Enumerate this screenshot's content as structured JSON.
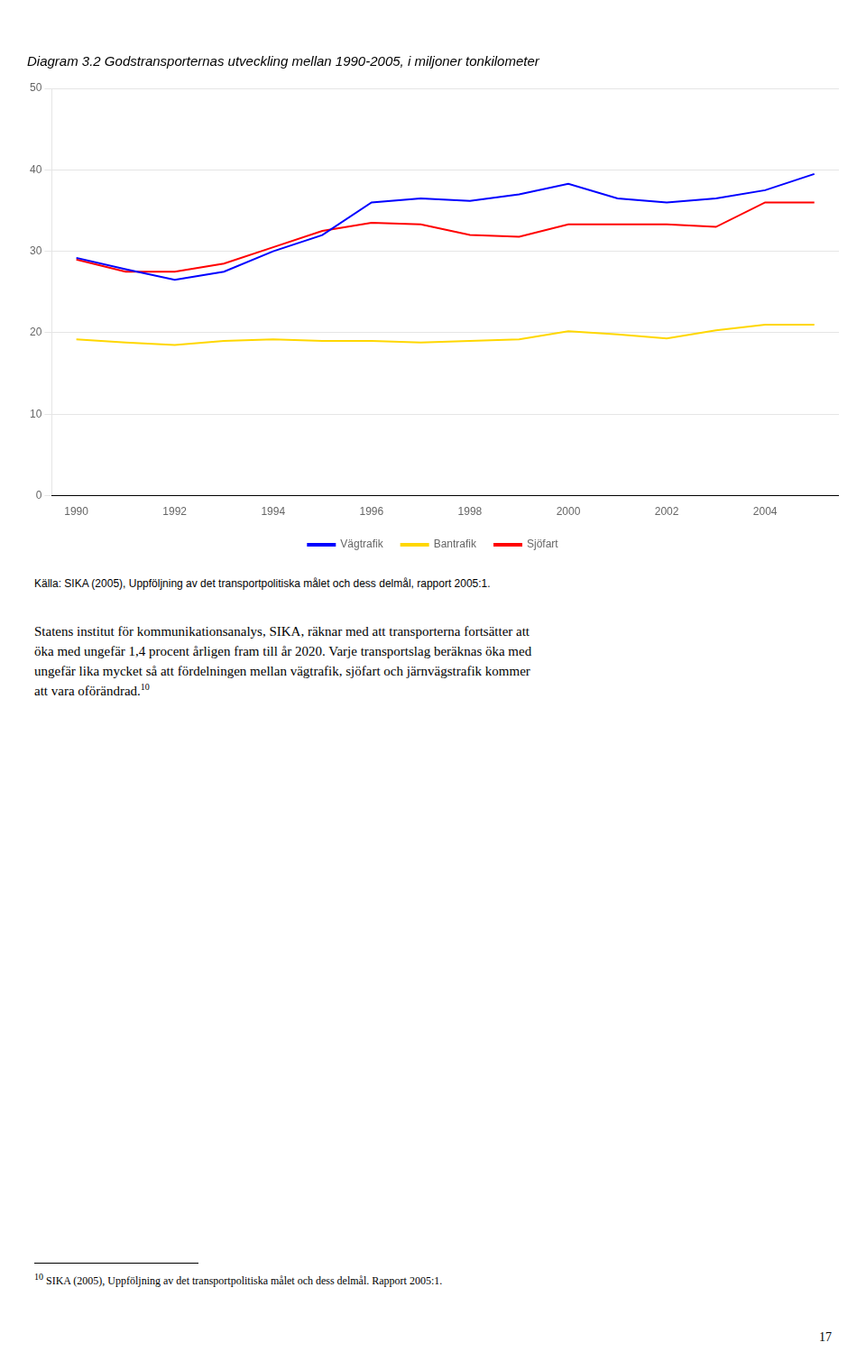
{
  "chart_data": {
    "type": "line",
    "title": "Diagram 3.2 Godstransporternas utveckling mellan 1990-2005, i miljoner tonkilometer",
    "x": [
      1990,
      1991,
      1992,
      1993,
      1994,
      1995,
      1996,
      1997,
      1998,
      1999,
      2000,
      2001,
      2002,
      2003,
      2004,
      2005
    ],
    "series": [
      {
        "name": "Vägtrafik",
        "color": "#0000FF",
        "values": [
          29.2,
          27.8,
          26.5,
          27.5,
          30.0,
          32.0,
          36.0,
          36.5,
          36.2,
          37.0,
          38.3,
          36.5,
          36.0,
          36.5,
          37.5,
          39.5
        ]
      },
      {
        "name": "Bantrafik",
        "color": "#FFD700",
        "values": [
          19.2,
          18.8,
          18.5,
          19.0,
          19.2,
          19.0,
          19.0,
          18.8,
          19.0,
          19.2,
          20.2,
          19.8,
          19.3,
          20.3,
          21.0,
          21.0
        ]
      },
      {
        "name": "Sjöfart",
        "color": "#FF0000",
        "values": [
          29.0,
          27.5,
          27.5,
          28.5,
          30.5,
          32.5,
          33.5,
          33.3,
          32.0,
          31.8,
          33.3,
          33.3,
          33.3,
          33.0,
          36.0,
          36.0
        ]
      }
    ],
    "xlim": [
      1989.5,
      2005.5
    ],
    "xticks": [
      1990,
      1992,
      1994,
      1996,
      1998,
      2000,
      2002,
      2004
    ],
    "ylim": [
      0,
      50
    ],
    "yticks": [
      0,
      10,
      20,
      30,
      40,
      50
    ],
    "grid": "y",
    "legend": "bottom",
    "source": "Källa: SIKA (2005), Uppföljning av det transportpolitiska målet och dess delmål, rapport 2005:1.",
    "body": [
      "Statens institut för kommunikationsanalys, SIKA, räknar med att transporterna fortsätter att",
      "öka med ungefär 1,4 procent årligen fram till år 2020. Varje transportslag beräknas öka med",
      "ungefär lika mycket så att fördelningen mellan vägtrafik, sjöfart och järnvägstrafik kommer",
      "att vara oförändrad."
    ],
    "footnote_mark": "10",
    "footnote": "SIKA (2005), Uppföljning av det transportpolitiska målet och dess delmål. Rapport 2005:1.",
    "page_number": "17"
  }
}
